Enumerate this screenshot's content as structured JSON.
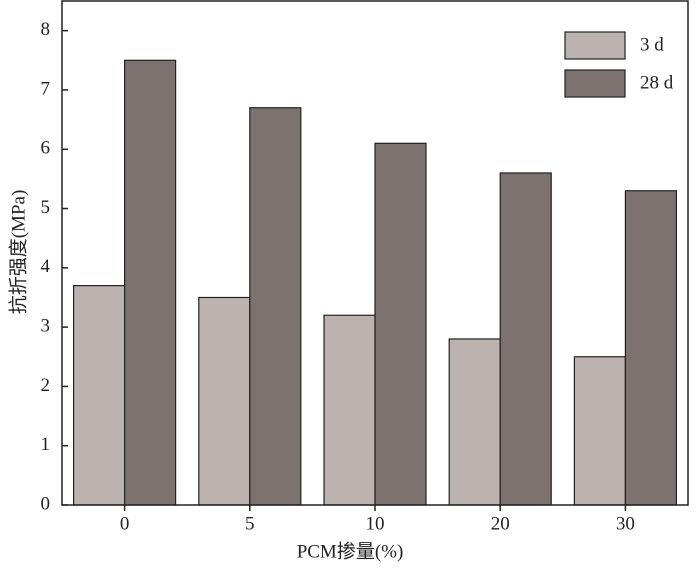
{
  "chart_data": {
    "type": "bar",
    "categories": [
      "0",
      "5",
      "10",
      "20",
      "30"
    ],
    "series": [
      {
        "name": "3 d",
        "color": "#bcb2af",
        "values": [
          3.7,
          3.5,
          3.2,
          2.8,
          2.5
        ]
      },
      {
        "name": "28 d",
        "color": "#7d726f",
        "values": [
          7.5,
          6.7,
          6.1,
          5.6,
          5.3
        ]
      }
    ],
    "ylim": [
      0,
      8.5
    ],
    "yticks": [
      0,
      1,
      2,
      3,
      4,
      5,
      6,
      7,
      8
    ],
    "x_label": "PCM掺量(%)",
    "y_label": "抗折强度(MPa)",
    "legend": "upper right"
  }
}
